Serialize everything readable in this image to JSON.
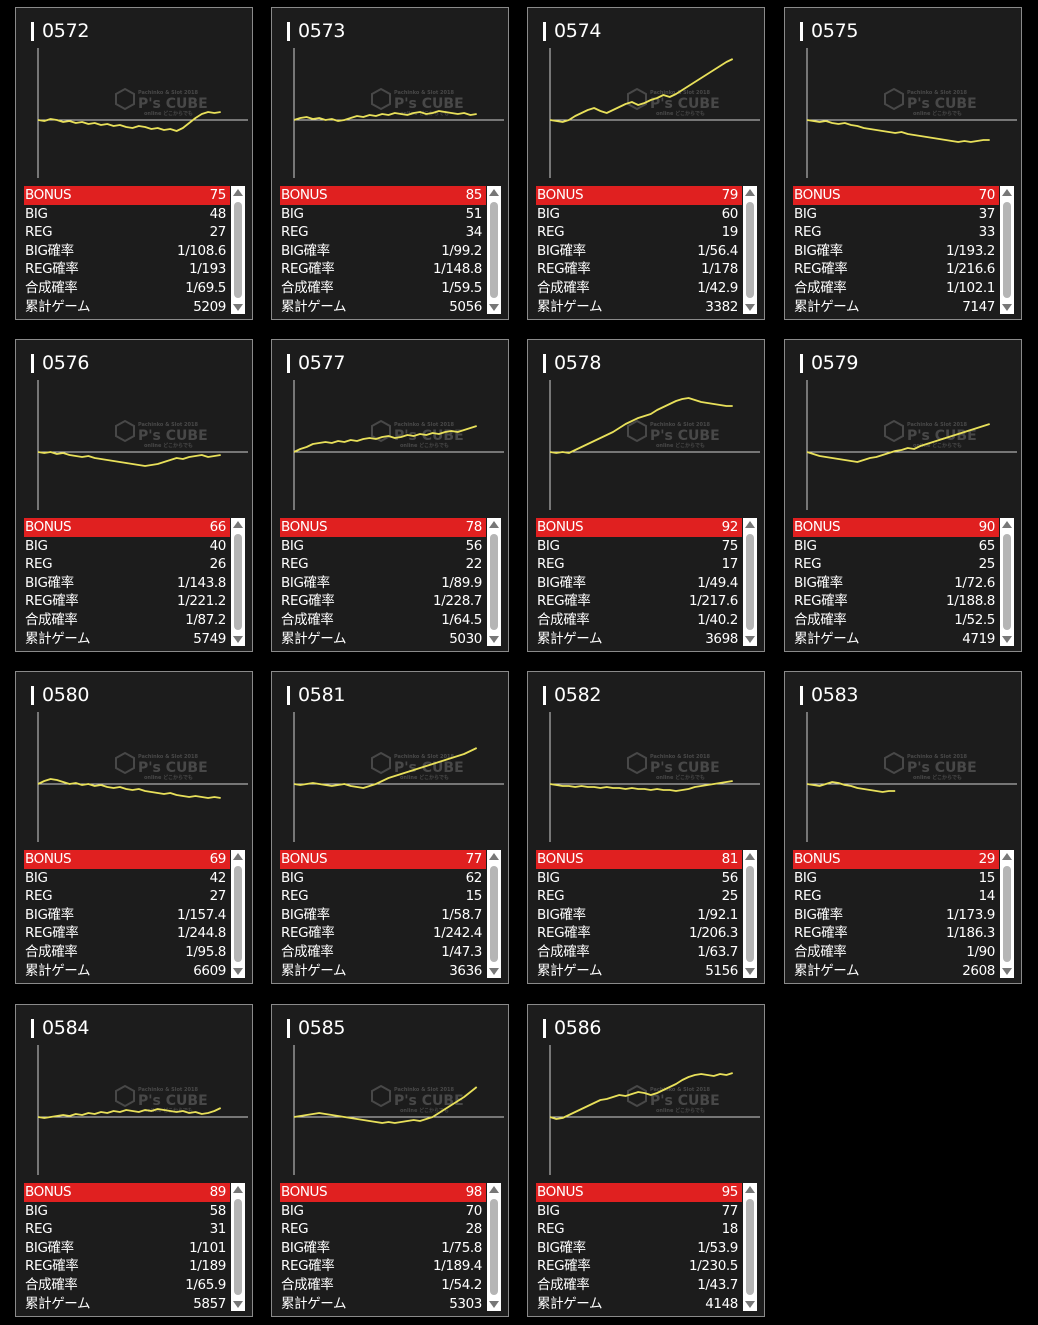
{
  "watermark": {
    "brand": "P's CUBE",
    "tagline": "Pachinko & Slot 2018",
    "sub": "online どこからでも"
  },
  "labels": {
    "bonus": "BONUS",
    "big": "BIG",
    "reg": "REG",
    "big_rate": "BIG確率",
    "reg_rate": "REG確率",
    "total_rate": "合成確率",
    "games": "累計ゲーム"
  },
  "colors": {
    "card_bg": "#1c1c1c",
    "bonus_bar": "#e02020",
    "graph_line": "#e8e05a",
    "axis": "#d0d0d0"
  },
  "machines": [
    {
      "id": "0572",
      "bonus": "75",
      "big": "48",
      "reg": "27",
      "big_rate": "1/108.6",
      "reg_rate": "1/193",
      "total_rate": "1/69.5",
      "games": "5209",
      "graph": [
        0,
        -1,
        1,
        0,
        -2,
        -1,
        -3,
        -2,
        -4,
        -3,
        -5,
        -4,
        -6,
        -5,
        -7,
        -8,
        -6,
        -7,
        -9,
        -8,
        -10,
        -9,
        -11,
        -8,
        -3,
        2,
        6,
        8,
        7,
        8
      ]
    },
    {
      "id": "0573",
      "bonus": "85",
      "big": "51",
      "reg": "34",
      "big_rate": "1/99.2",
      "reg_rate": "1/148.8",
      "total_rate": "1/59.5",
      "games": "5056",
      "graph": [
        0,
        2,
        3,
        1,
        2,
        0,
        1,
        -1,
        0,
        2,
        4,
        3,
        5,
        4,
        6,
        5,
        7,
        6,
        5,
        7,
        8,
        6,
        7,
        9,
        8,
        7,
        6,
        7,
        5,
        6
      ]
    },
    {
      "id": "0574",
      "bonus": "79",
      "big": "60",
      "reg": "19",
      "big_rate": "1/56.4",
      "reg_rate": "1/178",
      "total_rate": "1/42.9",
      "games": "3382",
      "graph": [
        0,
        -1,
        -2,
        0,
        4,
        7,
        10,
        12,
        9,
        7,
        10,
        13,
        16,
        18,
        15,
        17,
        20,
        22,
        25,
        23,
        26,
        30,
        34,
        38,
        42,
        46,
        50,
        54,
        58,
        61
      ]
    },
    {
      "id": "0575",
      "bonus": "70",
      "big": "37",
      "reg": "33",
      "big_rate": "1/193.2",
      "reg_rate": "1/216.6",
      "total_rate": "1/102.1",
      "games": "7147",
      "graph": [
        0,
        -1,
        -2,
        -1,
        -3,
        -4,
        -3,
        -5,
        -6,
        -8,
        -9,
        -10,
        -11,
        -12,
        -13,
        -12,
        -14,
        -15,
        -16,
        -17,
        -18,
        -19,
        -20,
        -21,
        -22,
        -21,
        -22,
        -21,
        -20,
        -20
      ]
    },
    {
      "id": "0576",
      "bonus": "66",
      "big": "40",
      "reg": "26",
      "big_rate": "1/143.8",
      "reg_rate": "1/221.2",
      "total_rate": "1/87.2",
      "games": "5749",
      "graph": [
        0,
        -1,
        0,
        -2,
        -1,
        -3,
        -4,
        -5,
        -4,
        -6,
        -7,
        -8,
        -9,
        -10,
        -11,
        -12,
        -13,
        -14,
        -13,
        -12,
        -10,
        -8,
        -6,
        -7,
        -5,
        -4,
        -3,
        -5,
        -4,
        -3
      ]
    },
    {
      "id": "0577",
      "bonus": "78",
      "big": "56",
      "reg": "22",
      "big_rate": "1/89.9",
      "reg_rate": "1/228.7",
      "total_rate": "1/64.5",
      "games": "5030",
      "graph": [
        0,
        3,
        5,
        8,
        9,
        10,
        9,
        11,
        10,
        12,
        11,
        13,
        14,
        13,
        15,
        16,
        14,
        15,
        17,
        16,
        18,
        17,
        19,
        18,
        20,
        21,
        20,
        22,
        24,
        26
      ]
    },
    {
      "id": "0578",
      "bonus": "92",
      "big": "75",
      "reg": "17",
      "big_rate": "1/49.4",
      "reg_rate": "1/217.6",
      "total_rate": "1/40.2",
      "games": "3698",
      "graph": [
        0,
        -1,
        0,
        -1,
        2,
        5,
        8,
        11,
        14,
        17,
        20,
        24,
        28,
        31,
        34,
        36,
        38,
        42,
        45,
        48,
        51,
        53,
        54,
        52,
        50,
        49,
        48,
        47,
        46,
        46
      ]
    },
    {
      "id": "0579",
      "bonus": "90",
      "big": "65",
      "reg": "25",
      "big_rate": "1/72.6",
      "reg_rate": "1/188.8",
      "total_rate": "1/52.5",
      "games": "4719",
      "graph": [
        0,
        -2,
        -4,
        -5,
        -6,
        -7,
        -8,
        -9,
        -10,
        -8,
        -6,
        -5,
        -3,
        -1,
        1,
        2,
        4,
        3,
        6,
        8,
        10,
        12,
        14,
        16,
        18,
        20,
        22,
        24,
        26,
        28
      ]
    },
    {
      "id": "0580",
      "bonus": "69",
      "big": "42",
      "reg": "27",
      "big_rate": "1/157.4",
      "reg_rate": "1/244.8",
      "total_rate": "1/95.8",
      "games": "6609",
      "graph": [
        0,
        3,
        5,
        4,
        2,
        0,
        1,
        -1,
        0,
        -2,
        -1,
        -3,
        -4,
        -3,
        -5,
        -6,
        -5,
        -7,
        -8,
        -9,
        -10,
        -9,
        -11,
        -12,
        -13,
        -12,
        -13,
        -14,
        -13,
        -14
      ]
    },
    {
      "id": "0581",
      "bonus": "77",
      "big": "62",
      "reg": "15",
      "big_rate": "1/58.7",
      "reg_rate": "1/242.4",
      "total_rate": "1/47.3",
      "games": "3636",
      "graph": [
        0,
        -1,
        0,
        1,
        0,
        -1,
        -2,
        -1,
        0,
        -2,
        -3,
        -4,
        -2,
        0,
        3,
        6,
        8,
        10,
        12,
        14,
        16,
        18,
        20,
        22,
        24,
        26,
        28,
        30,
        33,
        36
      ]
    },
    {
      "id": "0582",
      "bonus": "81",
      "big": "56",
      "reg": "25",
      "big_rate": "1/92.1",
      "reg_rate": "1/206.3",
      "total_rate": "1/63.7",
      "games": "5156",
      "graph": [
        0,
        -1,
        -2,
        -2,
        -3,
        -2,
        -3,
        -3,
        -4,
        -3,
        -4,
        -4,
        -5,
        -4,
        -5,
        -5,
        -6,
        -5,
        -6,
        -6,
        -7,
        -6,
        -5,
        -3,
        -2,
        -1,
        0,
        1,
        2,
        3
      ]
    },
    {
      "id": "0583",
      "bonus": "29",
      "big": "15",
      "reg": "14",
      "big_rate": "1/173.9",
      "reg_rate": "1/186.3",
      "total_rate": "1/90",
      "games": "2608",
      "graph": [
        0,
        -1,
        -2,
        0,
        2,
        1,
        -1,
        -2,
        -4,
        -5,
        -6,
        -7,
        -8,
        -7,
        -7
      ]
    },
    {
      "id": "0584",
      "bonus": "89",
      "big": "58",
      "reg": "31",
      "big_rate": "1/101",
      "reg_rate": "1/189",
      "total_rate": "1/65.9",
      "games": "5857",
      "graph": [
        0,
        -1,
        0,
        1,
        2,
        1,
        3,
        2,
        4,
        3,
        5,
        4,
        6,
        5,
        7,
        6,
        5,
        7,
        6,
        8,
        7,
        6,
        5,
        6,
        4,
        5,
        3,
        4,
        6,
        9
      ]
    },
    {
      "id": "0585",
      "bonus": "98",
      "big": "70",
      "reg": "28",
      "big_rate": "1/75.8",
      "reg_rate": "1/189.4",
      "total_rate": "1/54.2",
      "games": "5303",
      "graph": [
        0,
        1,
        2,
        3,
        4,
        3,
        2,
        1,
        0,
        -1,
        -2,
        -3,
        -4,
        -5,
        -6,
        -5,
        -6,
        -5,
        -4,
        -3,
        -4,
        -2,
        0,
        4,
        8,
        12,
        16,
        20,
        25,
        30
      ]
    },
    {
      "id": "0586",
      "bonus": "95",
      "big": "77",
      "reg": "18",
      "big_rate": "1/53.9",
      "reg_rate": "1/230.5",
      "total_rate": "1/43.7",
      "games": "4148",
      "graph": [
        0,
        -2,
        -1,
        2,
        5,
        8,
        11,
        14,
        17,
        18,
        20,
        22,
        21,
        23,
        25,
        24,
        22,
        24,
        27,
        30,
        33,
        37,
        40,
        42,
        43,
        42,
        41,
        43,
        42,
        44
      ]
    }
  ]
}
